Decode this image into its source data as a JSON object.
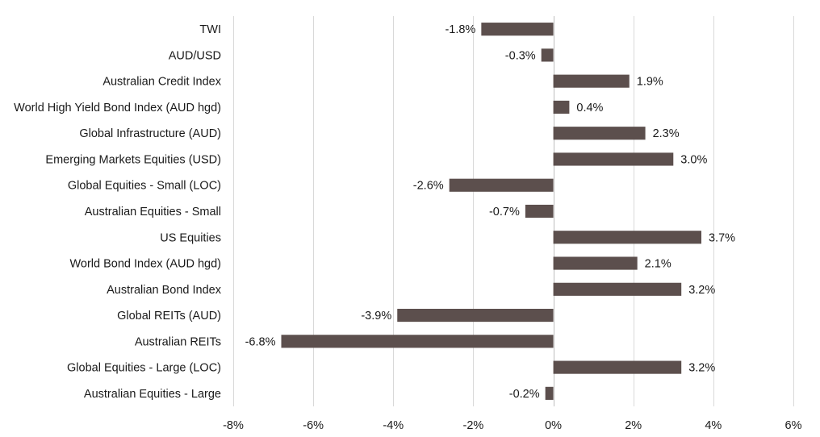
{
  "chart_data": {
    "type": "bar",
    "orientation": "horizontal",
    "title": "",
    "xlabel": "",
    "ylabel": "",
    "categories": [
      "TWI",
      "AUD/USD",
      "Australian Credit Index",
      "World High Yield Bond Index (AUD hgd)",
      "Global Infrastructure (AUD)",
      "Emerging Markets Equities (USD)",
      "Global Equities - Small (LOC)",
      "Australian Equities - Small",
      "US Equities",
      "World Bond Index (AUD hgd)",
      "Australian Bond Index",
      "Global REITs (AUD)",
      "Australian REITs",
      "Global Equities - Large (LOC)",
      "Australian Equities - Large"
    ],
    "values": [
      -1.8,
      -0.3,
      1.9,
      0.4,
      2.3,
      3.0,
      -2.6,
      -0.7,
      3.7,
      2.1,
      3.2,
      -3.9,
      -6.8,
      3.2,
      -0.2
    ],
    "value_labels": [
      "-1.8%",
      "-0.3%",
      "1.9%",
      "0.4%",
      "2.3%",
      "3.0%",
      "-2.6%",
      "-0.7%",
      "3.7%",
      "2.1%",
      "3.2%",
      "-3.9%",
      "-6.8%",
      "3.2%",
      "-0.2%"
    ],
    "xlim": [
      -8,
      6
    ],
    "xticks": [
      -8,
      -6,
      -4,
      -2,
      0,
      2,
      4,
      6
    ],
    "xtick_labels": [
      "-8%",
      "-6%",
      "-4%",
      "-2%",
      "0%",
      "2%",
      "4%",
      "6%"
    ],
    "grid": "vertical",
    "legend": "none",
    "bar_color": "#5c4f4d"
  }
}
